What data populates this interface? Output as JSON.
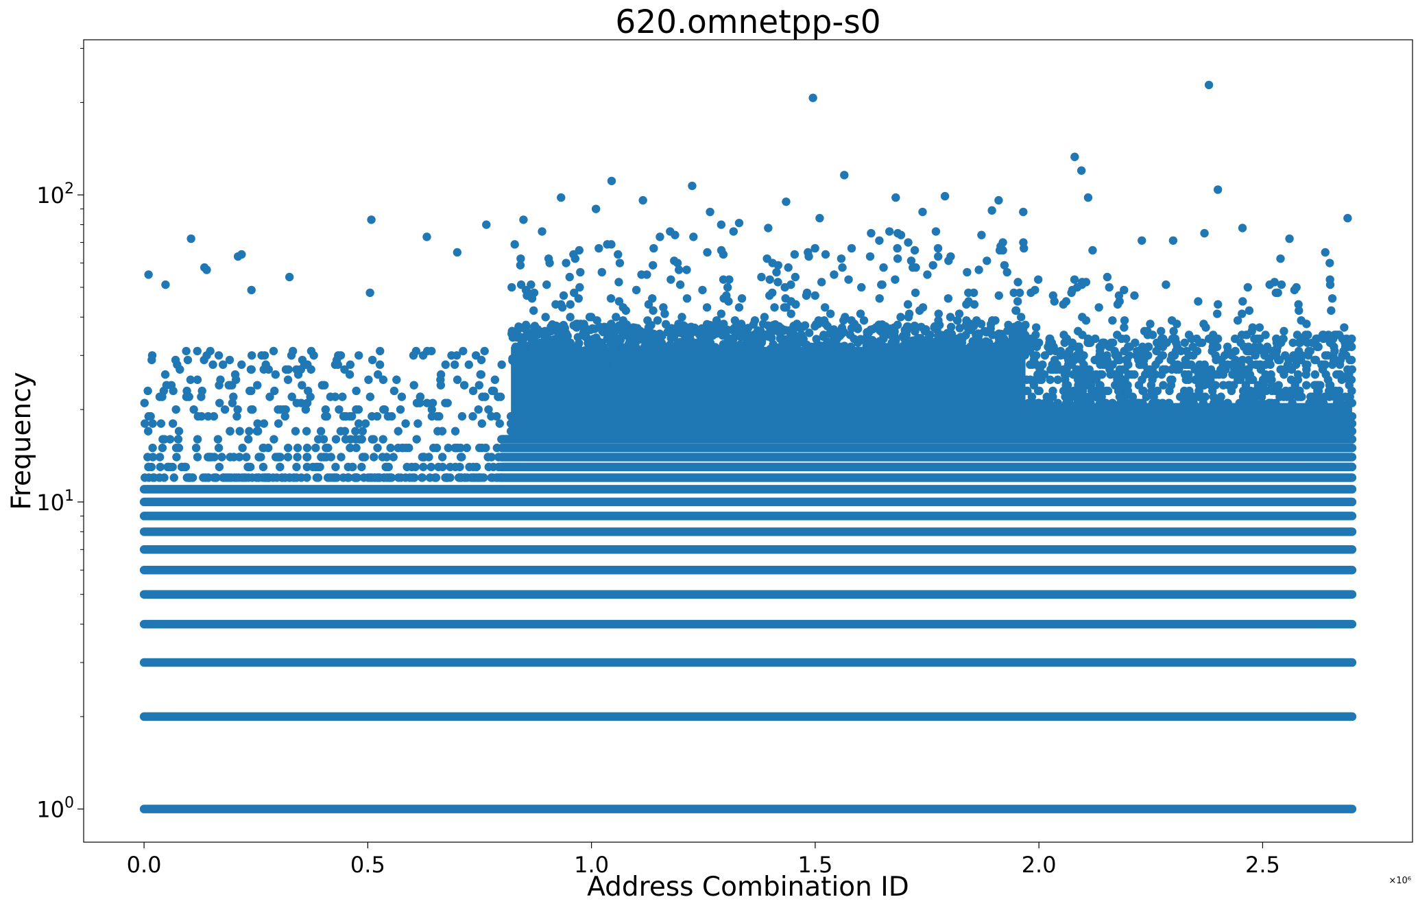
{
  "chart_data": {
    "type": "scatter",
    "title": "620.omnetpp-s0",
    "xlabel": "Address Combination ID",
    "ylabel": "Frequency",
    "x_offset_label": "×10⁶",
    "x_scale": "linear",
    "y_scale": "log",
    "xlim": [
      -135000,
      2835000
    ],
    "ylim": [
      0.78,
      320
    ],
    "grid": false,
    "legend": "none",
    "marker_color": "#1f77b4",
    "x_ticks": [
      {
        "value": 0.0,
        "label": "0.0"
      },
      {
        "value": 500000,
        "label": "0.5"
      },
      {
        "value": 1000000,
        "label": "1.0"
      },
      {
        "value": 1500000,
        "label": "1.5"
      },
      {
        "value": 2000000,
        "label": "2.0"
      },
      {
        "value": 2500000,
        "label": "2.5"
      }
    ],
    "y_ticks": [
      {
        "value": 1,
        "base": "10",
        "exp": "0"
      },
      {
        "value": 10,
        "base": "10",
        "exp": "1"
      },
      {
        "value": 100,
        "base": "10",
        "exp": "2"
      }
    ],
    "dense_levels": [
      {
        "y": 1,
        "x_start": 0,
        "x_end": 2700000
      },
      {
        "y": 2,
        "x_start": 0,
        "x_end": 2700000
      },
      {
        "y": 3,
        "x_start": 0,
        "x_end": 2700000
      },
      {
        "y": 4,
        "x_start": 0,
        "x_end": 2700000
      },
      {
        "y": 5,
        "x_start": 0,
        "x_end": 2700000
      },
      {
        "y": 6,
        "x_start": 0,
        "x_end": 2700000
      },
      {
        "y": 7,
        "x_start": 0,
        "x_end": 2700000
      },
      {
        "y": 8,
        "x_start": 0,
        "x_end": 2700000
      },
      {
        "y": 9,
        "x_start": 0,
        "x_end": 2700000
      },
      {
        "y": 10,
        "x_start": 0,
        "x_end": 2700000
      },
      {
        "y": 11,
        "x_start": 0,
        "x_end": 2700000
      },
      {
        "y": 12,
        "x_start": 800000,
        "x_end": 2700000
      },
      {
        "y": 13,
        "x_start": 800000,
        "x_end": 2700000
      },
      {
        "y": 14,
        "x_start": 800000,
        "x_end": 2700000
      },
      {
        "y": 15,
        "x_start": 800000,
        "x_end": 2700000
      },
      {
        "y": 16,
        "x_start": 800000,
        "x_end": 2700000
      },
      {
        "y": 17,
        "x_start": 820000,
        "x_end": 2700000
      },
      {
        "y": 18,
        "x_start": 820000,
        "x_end": 2700000
      },
      {
        "y": 19,
        "x_start": 820000,
        "x_end": 2700000
      }
    ],
    "dense_region": {
      "x_start": 820000,
      "x_end": 1970000,
      "y_start": 17,
      "y_end": 32
    },
    "outliers": [
      {
        "x": 10000,
        "y": 55
      },
      {
        "x": 48000,
        "y": 51
      },
      {
        "x": 105000,
        "y": 72
      },
      {
        "x": 135000,
        "y": 58
      },
      {
        "x": 140000,
        "y": 57
      },
      {
        "x": 210000,
        "y": 63
      },
      {
        "x": 218000,
        "y": 64
      },
      {
        "x": 240000,
        "y": 49
      },
      {
        "x": 325000,
        "y": 54
      },
      {
        "x": 508000,
        "y": 83
      },
      {
        "x": 505000,
        "y": 48
      },
      {
        "x": 632000,
        "y": 73
      },
      {
        "x": 700000,
        "y": 65
      },
      {
        "x": 765000,
        "y": 80
      },
      {
        "x": 848000,
        "y": 83
      },
      {
        "x": 932000,
        "y": 98
      },
      {
        "x": 1010000,
        "y": 90
      },
      {
        "x": 1045000,
        "y": 111
      },
      {
        "x": 1115000,
        "y": 96
      },
      {
        "x": 1225000,
        "y": 107
      },
      {
        "x": 1265000,
        "y": 88
      },
      {
        "x": 1290000,
        "y": 80
      },
      {
        "x": 1330000,
        "y": 81
      },
      {
        "x": 1395000,
        "y": 78
      },
      {
        "x": 1435000,
        "y": 95
      },
      {
        "x": 1495000,
        "y": 207
      },
      {
        "x": 1510000,
        "y": 84
      },
      {
        "x": 1565000,
        "y": 116
      },
      {
        "x": 1625000,
        "y": 75
      },
      {
        "x": 1680000,
        "y": 98
      },
      {
        "x": 1740000,
        "y": 88
      },
      {
        "x": 1790000,
        "y": 99
      },
      {
        "x": 1895000,
        "y": 89
      },
      {
        "x": 1910000,
        "y": 96
      },
      {
        "x": 1965000,
        "y": 88
      },
      {
        "x": 2080000,
        "y": 133
      },
      {
        "x": 2095000,
        "y": 120
      },
      {
        "x": 2110000,
        "y": 98
      },
      {
        "x": 2120000,
        "y": 66
      },
      {
        "x": 2230000,
        "y": 71
      },
      {
        "x": 2300000,
        "y": 71
      },
      {
        "x": 2380000,
        "y": 228
      },
      {
        "x": 2400000,
        "y": 104
      },
      {
        "x": 2370000,
        "y": 75
      },
      {
        "x": 2455000,
        "y": 78
      },
      {
        "x": 2540000,
        "y": 62
      },
      {
        "x": 2560000,
        "y": 72
      },
      {
        "x": 2640000,
        "y": 65
      },
      {
        "x": 2650000,
        "y": 60
      },
      {
        "x": 2690000,
        "y": 84
      }
    ]
  }
}
